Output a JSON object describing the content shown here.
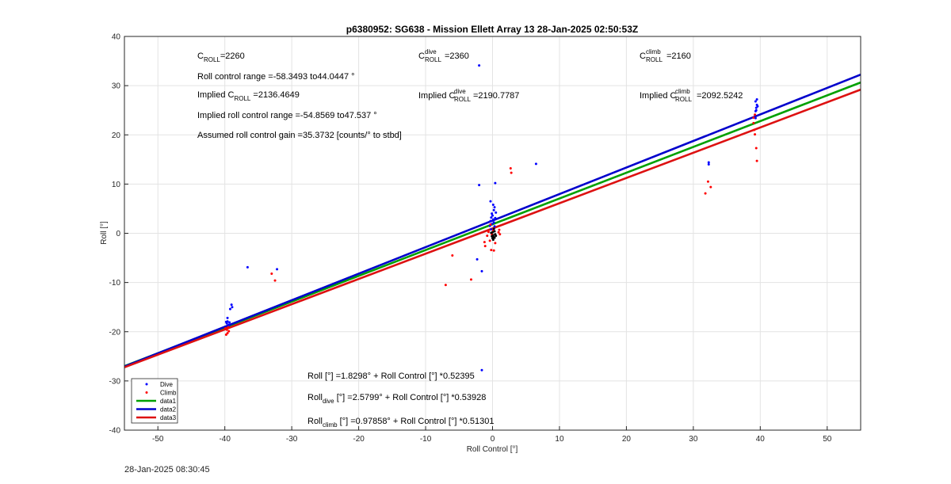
{
  "chart_data": {
    "type": "scatter",
    "title": "p6380952: SG638 - Mission Ellett Array 13 28-Jan-2025 02:50:53Z",
    "xlabel": "Roll Control [°]",
    "ylabel": "Roll [°]",
    "xlim": [
      -55,
      55
    ],
    "ylim": [
      -40,
      40
    ],
    "xticks": [
      -50,
      -40,
      -30,
      -20,
      -10,
      0,
      10,
      20,
      30,
      40,
      50
    ],
    "yticks": [
      -40,
      -30,
      -20,
      -10,
      0,
      10,
      20,
      30,
      40
    ],
    "grid": true,
    "legend_position": "bottom-left",
    "series": [
      {
        "name": "Dive",
        "kind": "points",
        "color": "#0000ff",
        "points": [
          [
            -39.6,
            -17.2
          ],
          [
            -39.6,
            -17.9
          ],
          [
            -39.7,
            -18.3
          ],
          [
            -39.4,
            -18.6
          ],
          [
            -39.8,
            -18.0
          ],
          [
            -39.5,
            -18.9
          ],
          [
            -39.3,
            -18.1
          ],
          [
            -39.2,
            -15.4
          ],
          [
            -39.0,
            -14.5
          ],
          [
            -38.9,
            -15.0
          ],
          [
            -36.6,
            -6.9
          ],
          [
            -32.2,
            -7.3
          ],
          [
            -2.0,
            34.1
          ],
          [
            -2.0,
            9.8
          ],
          [
            0.4,
            10.2
          ],
          [
            6.5,
            14.1
          ],
          [
            -2.3,
            -5.3
          ],
          [
            -1.6,
            -7.7
          ],
          [
            -1.6,
            -27.8
          ],
          [
            -0.4,
            1.5
          ],
          [
            -0.3,
            2.5
          ],
          [
            -0.2,
            3.2
          ],
          [
            -0.1,
            4.0
          ],
          [
            0.0,
            3.6
          ],
          [
            0.1,
            2.8
          ],
          [
            0.2,
            4.7
          ],
          [
            0.3,
            5.3
          ],
          [
            0.4,
            3.1
          ],
          [
            -0.3,
            6.5
          ],
          [
            -0.1,
            1.9
          ],
          [
            0.2,
            2.2
          ],
          [
            0.5,
            4.2
          ],
          [
            0.3,
            1.4
          ],
          [
            -0.2,
            0.8
          ],
          [
            0.1,
            5.8
          ],
          [
            32.3,
            14.4
          ],
          [
            32.3,
            14.0
          ],
          [
            39.3,
            24.8
          ],
          [
            39.4,
            25.5
          ],
          [
            39.5,
            26.1
          ],
          [
            39.3,
            26.8
          ],
          [
            39.5,
            27.2
          ],
          [
            39.4,
            25.0
          ],
          [
            39.6,
            25.8
          ],
          [
            39.3,
            23.4
          ]
        ]
      },
      {
        "name": "Climb",
        "kind": "points",
        "color": "#ff0000",
        "points": [
          [
            -39.7,
            -19.6
          ],
          [
            -39.6,
            -20.3
          ],
          [
            -39.5,
            -19.1
          ],
          [
            -39.8,
            -20.6
          ],
          [
            -39.4,
            -19.9
          ],
          [
            -39.9,
            -19.3
          ],
          [
            -33.0,
            -8.2
          ],
          [
            -32.5,
            -9.6
          ],
          [
            -6.0,
            -4.5
          ],
          [
            -7.0,
            -10.5
          ],
          [
            -3.2,
            -9.4
          ],
          [
            -1.2,
            -1.8
          ],
          [
            -1.1,
            -2.6
          ],
          [
            -0.8,
            -0.5
          ],
          [
            -0.6,
            0.3
          ],
          [
            -0.4,
            -1.5
          ],
          [
            -0.2,
            -3.4
          ],
          [
            0.2,
            -3.5
          ],
          [
            0.4,
            -2.0
          ],
          [
            -0.3,
            1.8
          ],
          [
            -0.1,
            -0.2
          ],
          [
            0.1,
            0.6
          ],
          [
            1.0,
            0.7
          ],
          [
            1.1,
            -0.2
          ],
          [
            0.9,
            0.2
          ],
          [
            2.7,
            13.2
          ],
          [
            2.8,
            12.3
          ],
          [
            31.8,
            8.1
          ],
          [
            32.2,
            10.5
          ],
          [
            32.6,
            9.4
          ],
          [
            39.0,
            22.4
          ],
          [
            39.1,
            21.0
          ],
          [
            39.2,
            20.1
          ],
          [
            39.4,
            17.3
          ],
          [
            39.5,
            14.7
          ],
          [
            39.0,
            23.5
          ],
          [
            39.2,
            24.1
          ]
        ]
      },
      {
        "name": "",
        "kind": "points",
        "color": "#000000",
        "points": [
          [
            0.0,
            0.2
          ],
          [
            0.1,
            -0.4
          ],
          [
            0.2,
            -0.8
          ],
          [
            0.3,
            0.4
          ],
          [
            -0.1,
            -0.6
          ],
          [
            0.4,
            -0.2
          ],
          [
            0.0,
            -1.0
          ],
          [
            0.2,
            0.9
          ],
          [
            -0.2,
            0.1
          ],
          [
            0.5,
            -0.5
          ],
          [
            0.1,
            -1.3
          ],
          [
            0.3,
            -0.9
          ]
        ]
      },
      {
        "name": "data1",
        "kind": "line",
        "color": "#00a000",
        "intercept": 1.8298,
        "slope": 0.52395
      },
      {
        "name": "data2",
        "kind": "line",
        "color": "#0000cc",
        "intercept": 2.5799,
        "slope": 0.53928
      },
      {
        "name": "data3",
        "kind": "line",
        "color": "#dd1111",
        "intercept": 0.97858,
        "slope": 0.51301
      }
    ],
    "legend": [
      {
        "label": "Dive",
        "symbol": "point",
        "color": "#0000ff"
      },
      {
        "label": "Climb",
        "symbol": "point",
        "color": "#ff0000"
      },
      {
        "label": "data1",
        "symbol": "line",
        "color": "#00a000"
      },
      {
        "label": "data2",
        "symbol": "line",
        "color": "#0000cc"
      },
      {
        "label": "data3",
        "symbol": "line",
        "color": "#dd1111"
      }
    ],
    "annotations": {
      "c_roll": {
        "base": "C",
        "sub": "ROLL",
        "sup": "",
        "value": "=2260"
      },
      "c_roll_dive": {
        "base": "C",
        "sub": "ROLL",
        "sup": "dive",
        "value": "=2360"
      },
      "c_roll_climb": {
        "base": "C",
        "sub": "ROLL",
        "sup": "climb",
        "value": "=2160"
      },
      "roll_range": "Roll control range =-58.3493 to44.0447 °",
      "implied_c_roll": {
        "prefix": "Implied C",
        "sub": "ROLL",
        "value": " =2136.4649"
      },
      "implied_c_roll_dive": {
        "prefix": "Implied C",
        "sub": "ROLL",
        "sup": "dive",
        "value": "=2190.7787"
      },
      "implied_c_roll_climb": {
        "prefix": "Implied C",
        "sub": "ROLL",
        "sup": "climb",
        "value": "=2092.5242"
      },
      "implied_range": "Implied roll control range =-54.8569 to47.537 °",
      "gain": "Assumed roll control gain =35.3732 [counts/° to stbd]",
      "fit_all": "Roll [°] =1.8298° + Roll Control [°] *0.52395",
      "fit_dive": {
        "base": "Roll",
        "sub": "dive",
        "rest": " [°] =2.5799° + Roll Control [°] *0.53928"
      },
      "fit_climb": {
        "base": "Roll",
        "sub": "climb",
        "rest": " [°] =0.97858° + Roll Control [°] *0.51301"
      }
    }
  },
  "timestamp": "28-Jan-2025 08:30:45"
}
